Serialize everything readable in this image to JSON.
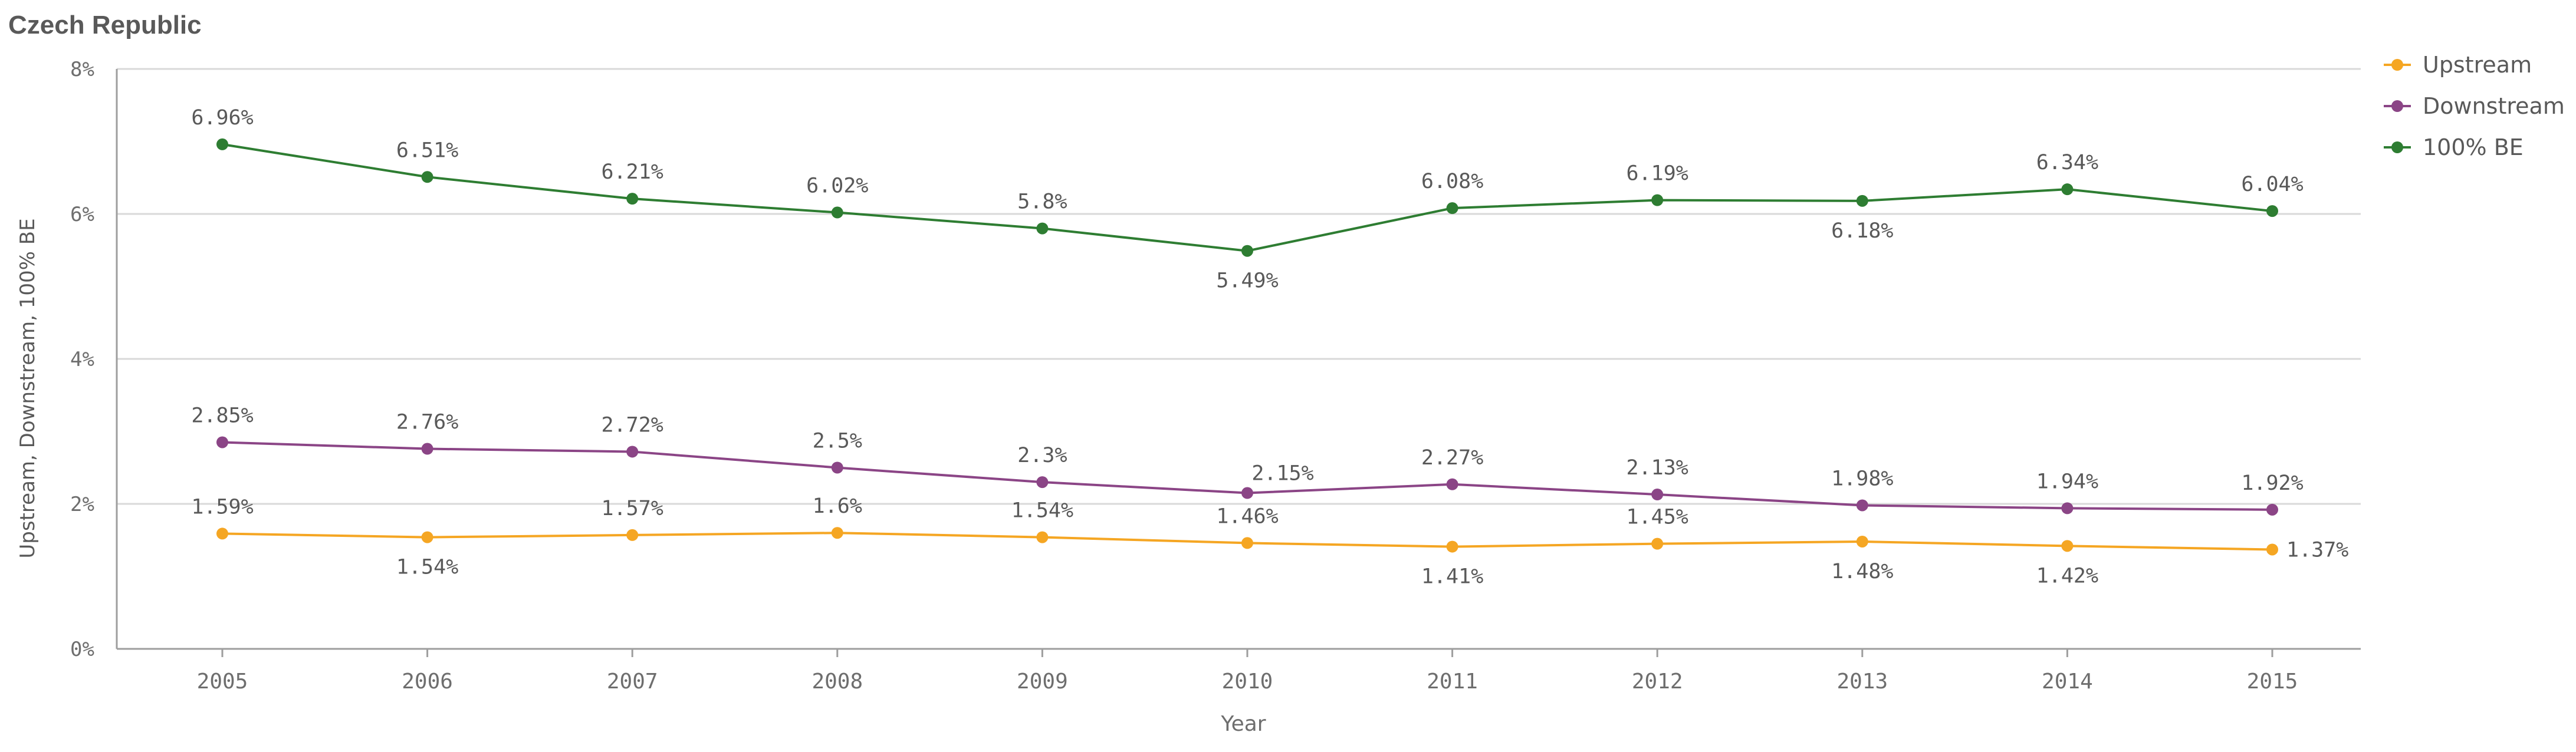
{
  "chart_data": {
    "type": "line",
    "title": "Czech Republic",
    "xlabel": "Year",
    "ylabel": "Upstream, Downstream, 100% BE",
    "x": [
      "2005",
      "2006",
      "2007",
      "2008",
      "2009",
      "2010",
      "2011",
      "2012",
      "2013",
      "2014",
      "2015"
    ],
    "y_ticks": [
      "0%",
      "2%",
      "4%",
      "6%",
      "8%"
    ],
    "ylim": [
      0,
      8
    ],
    "grid": true,
    "legend_position": "top-right",
    "series": [
      {
        "name": "Upstream",
        "color": "#f5a623",
        "values": [
          1.59,
          1.54,
          1.57,
          1.6,
          1.54,
          1.46,
          1.41,
          1.45,
          1.48,
          1.42,
          1.37
        ],
        "labels": [
          "1.59%",
          "1.54%",
          "1.57%",
          "1.6%",
          "1.54%",
          "1.46%",
          "1.41%",
          "1.45%",
          "1.48%",
          "1.42%",
          "1.37%"
        ]
      },
      {
        "name": "Downstream",
        "color": "#8b4586",
        "values": [
          2.85,
          2.76,
          2.72,
          2.5,
          2.3,
          2.15,
          2.27,
          2.13,
          1.98,
          1.94,
          1.92
        ],
        "labels": [
          "2.85%",
          "2.76%",
          "2.72%",
          "2.5%",
          "2.3%",
          "2.15%",
          "2.27%",
          "2.13%",
          "1.98%",
          "1.94%",
          "1.92%"
        ]
      },
      {
        "name": "100% BE",
        "color": "#2e7d32",
        "values": [
          6.96,
          6.51,
          6.21,
          6.02,
          5.8,
          5.49,
          6.08,
          6.19,
          6.18,
          6.34,
          6.04
        ],
        "labels": [
          "6.96%",
          "6.51%",
          "6.21%",
          "6.02%",
          "5.8%",
          "5.49%",
          "6.08%",
          "6.19%",
          "6.18%",
          "6.34%",
          "6.04%"
        ]
      }
    ]
  }
}
